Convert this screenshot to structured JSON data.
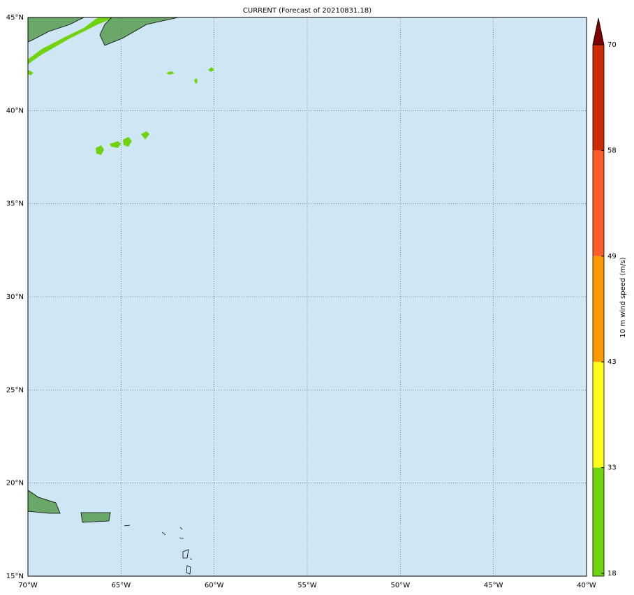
{
  "title": "CURRENT (Forecast of 20210831.18)",
  "map": {
    "xlim": [
      -70,
      -40
    ],
    "ylim": [
      15,
      45
    ],
    "xticks": [
      {
        "value": -70,
        "label": "70°W"
      },
      {
        "value": -65,
        "label": "65°W"
      },
      {
        "value": -60,
        "label": "60°W"
      },
      {
        "value": -55,
        "label": "55°W"
      },
      {
        "value": -50,
        "label": "50°W"
      },
      {
        "value": -45,
        "label": "45°W"
      },
      {
        "value": -40,
        "label": "40°W"
      }
    ],
    "yticks": [
      {
        "value": 15,
        "label": "15°N"
      },
      {
        "value": 20,
        "label": "20°N"
      },
      {
        "value": 25,
        "label": "25°N"
      },
      {
        "value": 30,
        "label": "30°N"
      },
      {
        "value": 35,
        "label": "35°N"
      },
      {
        "value": 40,
        "label": "40°N"
      },
      {
        "value": 45,
        "label": "45°N"
      }
    ],
    "grid": true
  },
  "colorbar": {
    "label": "10 m wind speed (m/s)",
    "levels": [
      18,
      33,
      43,
      49,
      58,
      70
    ],
    "colors": [
      "#6fd40f",
      "#ffff1a",
      "#ff9900",
      "#ff5e29",
      "#cc2a00"
    ],
    "extend_color": "#800000"
  }
}
